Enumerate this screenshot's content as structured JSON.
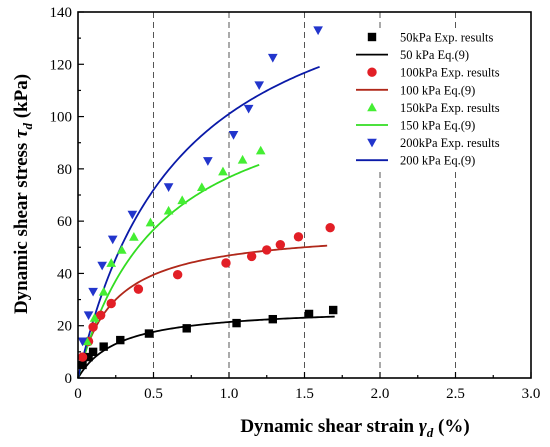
{
  "chart_data": {
    "type": "scatter",
    "title": "",
    "xlabel": "Dynamic shear strain",
    "xlabel_symbol": "γ",
    "xlabel_sub": "d",
    "xlabel_unit": " (%)",
    "ylabel": "Dynamic shear stress",
    "ylabel_symbol": "τ",
    "ylabel_sub": "d",
    "ylabel_unit": " (kPa)",
    "xlim": [
      0,
      3.0
    ],
    "ylim": [
      0,
      140
    ],
    "x_ticks": [
      "0",
      "0.5",
      "1.0",
      "1.5",
      "2.0",
      "2.5",
      "3.0"
    ],
    "y_ticks": [
      "0",
      "20",
      "40",
      "60",
      "80",
      "100",
      "120",
      "140"
    ],
    "grid": "dashed vertical at x ticks",
    "legend_placement": "top-right",
    "series": [
      {
        "name": "50kPa Exp. results",
        "kind": "scatter",
        "marker": "square",
        "color": "#000000",
        "points": [
          [
            0.03,
            5
          ],
          [
            0.07,
            8
          ],
          [
            0.1,
            10
          ],
          [
            0.17,
            12
          ],
          [
            0.28,
            14.5
          ],
          [
            0.47,
            17
          ],
          [
            0.72,
            19
          ],
          [
            1.05,
            21
          ],
          [
            1.29,
            22.5
          ],
          [
            1.53,
            24.5
          ],
          [
            1.69,
            26
          ]
        ]
      },
      {
        "name": "50 kPa Eq.(9)",
        "kind": "line",
        "color": "#000000",
        "model": {
          "a": 0.01,
          "b": 0.0367
        },
        "range": [
          0,
          1.7
        ]
      },
      {
        "name": "100kPa Exp. results",
        "kind": "scatter",
        "marker": "circle",
        "color": "#e21f26",
        "points": [
          [
            0.03,
            8
          ],
          [
            0.07,
            14
          ],
          [
            0.1,
            19.5
          ],
          [
            0.15,
            24
          ],
          [
            0.22,
            28.5
          ],
          [
            0.4,
            34
          ],
          [
            0.66,
            39.5
          ],
          [
            0.98,
            44
          ],
          [
            1.15,
            46.5
          ],
          [
            1.25,
            49
          ],
          [
            1.34,
            51
          ],
          [
            1.46,
            54
          ],
          [
            1.67,
            57.5
          ]
        ]
      },
      {
        "name": "100 kPa Eq.(9)",
        "kind": "line",
        "color": "#b0281a",
        "model": {
          "a": 0.004,
          "b": 0.01733
        },
        "range": [
          0,
          1.65
        ]
      },
      {
        "name": "150kPa Exp. results",
        "kind": "scatter",
        "marker": "triangle-up",
        "color": "#44ee33",
        "points": [
          [
            0.06,
            14
          ],
          [
            0.11,
            23
          ],
          [
            0.17,
            33
          ],
          [
            0.22,
            44
          ],
          [
            0.29,
            49
          ],
          [
            0.37,
            54
          ],
          [
            0.48,
            59.5
          ],
          [
            0.6,
            64
          ],
          [
            0.69,
            68
          ],
          [
            0.82,
            73
          ],
          [
            0.96,
            79
          ],
          [
            1.09,
            83.5
          ],
          [
            1.21,
            87
          ]
        ]
      },
      {
        "name": "150 kPa Eq.(9)",
        "kind": "line",
        "color": "#33dd22",
        "model": {
          "a": 0.0046,
          "b": 0.00843
        },
        "range": [
          0,
          1.2
        ]
      },
      {
        "name": "200kPa Exp. results",
        "kind": "scatter",
        "marker": "triangle-down",
        "color": "#2235cc",
        "points": [
          [
            0.03,
            14
          ],
          [
            0.07,
            24
          ],
          [
            0.1,
            33
          ],
          [
            0.16,
            43
          ],
          [
            0.23,
            53
          ],
          [
            0.36,
            62.5
          ],
          [
            0.6,
            73
          ],
          [
            0.86,
            83
          ],
          [
            1.03,
            93
          ],
          [
            1.13,
            103
          ],
          [
            1.2,
            112
          ],
          [
            1.29,
            122.5
          ],
          [
            1.59,
            133
          ]
        ]
      },
      {
        "name": "200 kPa Eq.(9)",
        "kind": "line",
        "color": "#0a1aa8",
        "model": {
          "a": 0.004,
          "b": 0.0059
        },
        "range": [
          0,
          1.6
        ]
      }
    ]
  }
}
